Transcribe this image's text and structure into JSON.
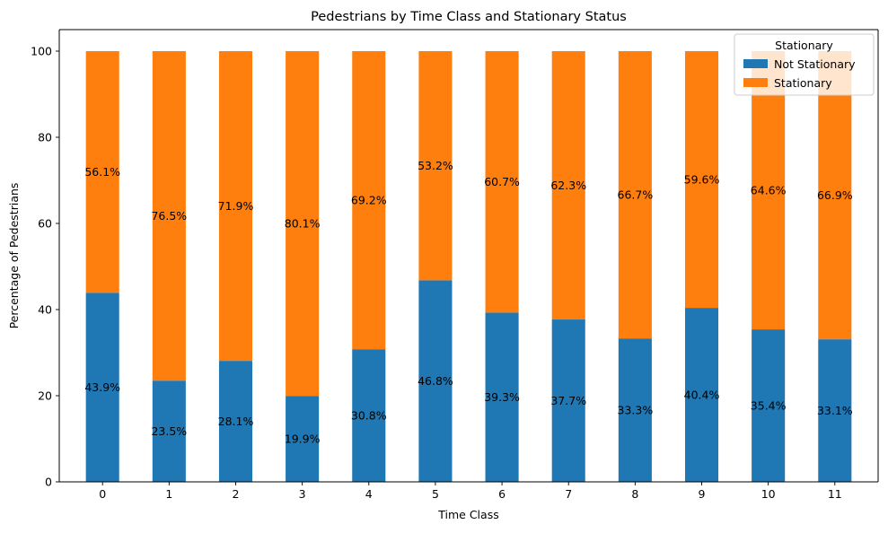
{
  "chart_data": {
    "type": "bar",
    "stacked": true,
    "title": "Pedestrians by Time Class and Stationary Status",
    "xlabel": "Time Class",
    "ylabel": "Percentage of Pedestrians",
    "categories": [
      "0",
      "1",
      "2",
      "3",
      "4",
      "5",
      "6",
      "7",
      "8",
      "9",
      "10",
      "11"
    ],
    "ylim": [
      0,
      105
    ],
    "yticks": [
      0,
      20,
      40,
      60,
      80,
      100
    ],
    "grid": false,
    "legend": {
      "title": "Stationary",
      "placement": "top-right"
    },
    "series": [
      {
        "name": "Not Stationary",
        "color": "#1f77b4",
        "values": [
          43.9,
          23.5,
          28.1,
          19.9,
          30.8,
          46.8,
          39.3,
          37.7,
          33.3,
          40.4,
          35.4,
          33.1
        ],
        "labels": [
          "43.9%",
          "23.5%",
          "28.1%",
          "19.9%",
          "30.8%",
          "46.8%",
          "39.3%",
          "37.7%",
          "33.3%",
          "40.4%",
          "35.4%",
          "33.1%"
        ]
      },
      {
        "name": "Stationary",
        "color": "#ff7f0e",
        "values": [
          56.1,
          76.5,
          71.9,
          80.1,
          69.2,
          53.2,
          60.7,
          62.3,
          66.7,
          59.6,
          64.6,
          66.9
        ],
        "labels": [
          "56.1%",
          "76.5%",
          "71.9%",
          "80.1%",
          "69.2%",
          "53.2%",
          "60.7%",
          "62.3%",
          "66.7%",
          "59.6%",
          "64.6%",
          "66.9%"
        ]
      }
    ]
  }
}
